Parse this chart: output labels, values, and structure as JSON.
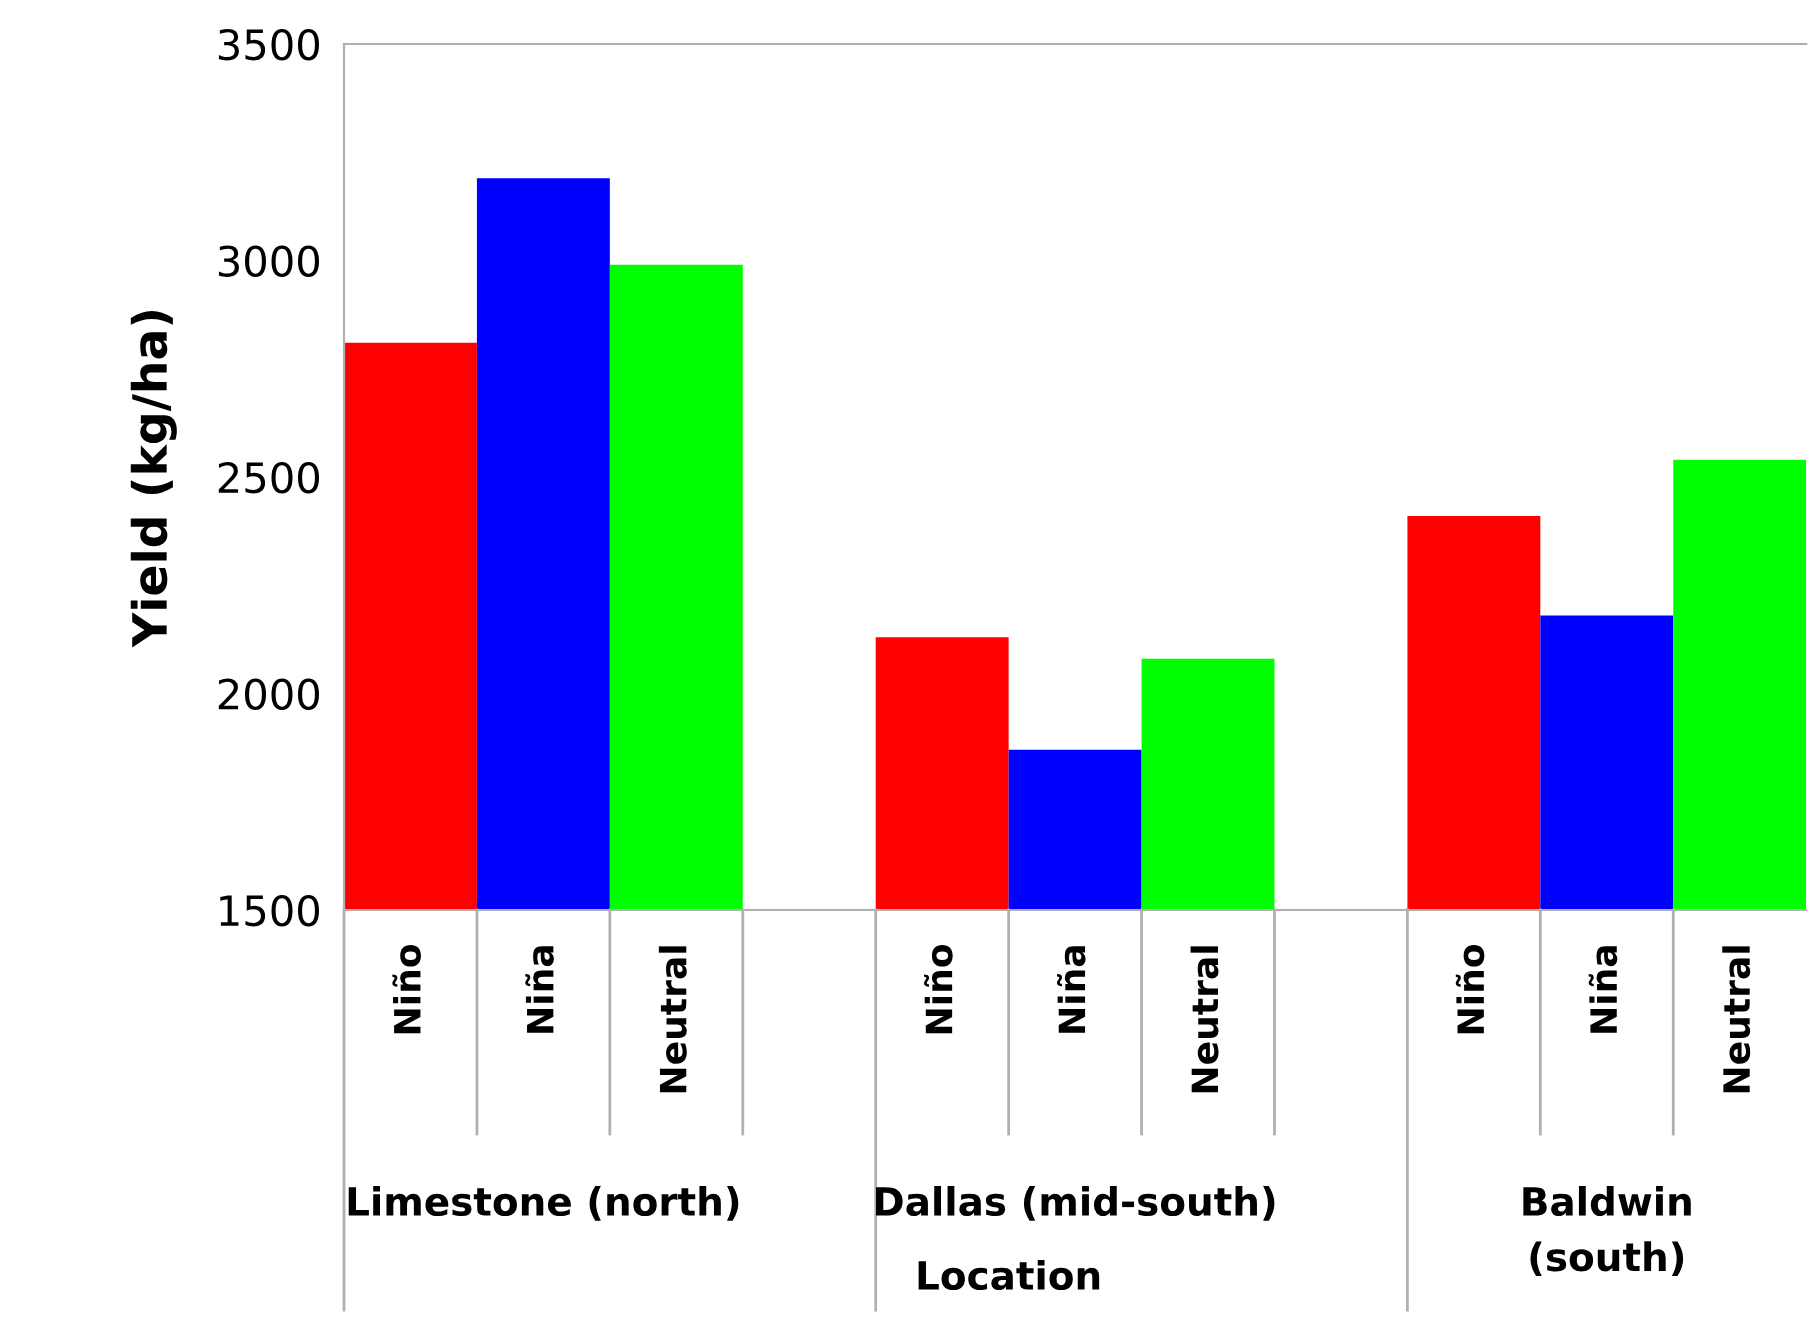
{
  "chart_data": {
    "type": "bar",
    "ylabel": "Yield (kg/ha)",
    "xlabel": "Location",
    "categories": [
      "Niño",
      "Niña",
      "Neutral",
      null,
      "Niño",
      "Niña",
      "Neutral",
      null,
      "Niño",
      "Niña",
      "Neutral"
    ],
    "values": [
      2810,
      3190,
      2990,
      null,
      2130,
      1870,
      2080,
      null,
      2410,
      2180,
      2540
    ],
    "colors": [
      "#ff0000",
      "#0000ff",
      "#00ff00",
      null,
      "#ff0000",
      "#0000ff",
      "#00ff00",
      null,
      "#ff0000",
      "#0000ff",
      "#00ff00"
    ],
    "ylim": [
      1500,
      3500
    ],
    "yticks": [
      1500,
      2000,
      2500,
      3000,
      3500
    ],
    "annotations": [
      "Limestone (north)",
      "Dallas (mid-south)",
      "Baldwin\n(south)"
    ],
    "grid": false,
    "legend": false
  }
}
